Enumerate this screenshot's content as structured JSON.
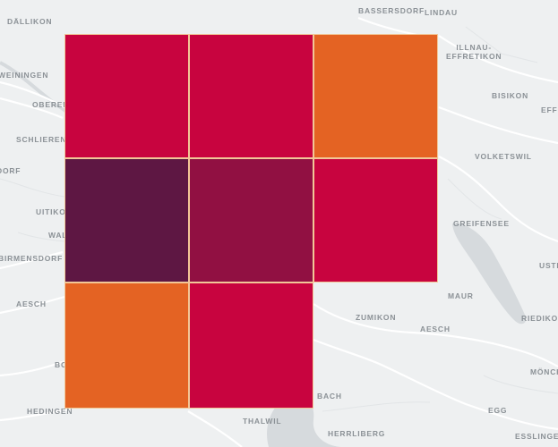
{
  "map": {
    "places": [
      {
        "id": "dallikon",
        "label": "DÄLLIKON"
      },
      {
        "id": "bassersdorf",
        "label": "BASSERSDORF"
      },
      {
        "id": "lindau",
        "label": "LINDAU"
      },
      {
        "id": "illnau",
        "label": "ILLNAU-\nEFFRETIKON"
      },
      {
        "id": "weiningen",
        "label": "WEININGEN"
      },
      {
        "id": "bisikon",
        "label": "BISIKON"
      },
      {
        "id": "oberengstringen",
        "label": "OBEREN"
      },
      {
        "id": "effretikon-edge",
        "label": "EFFF"
      },
      {
        "id": "schlieren",
        "label": "SCHLIEREN"
      },
      {
        "id": "volketswil",
        "label": "VOLKETSWIL"
      },
      {
        "id": "urdorf",
        "label": "DORF"
      },
      {
        "id": "uitikon",
        "label": "UITIKO"
      },
      {
        "id": "greifensee",
        "label": "GREIFENSEE"
      },
      {
        "id": "waldegg",
        "label": "WAL"
      },
      {
        "id": "birmensdorf",
        "label": "BIRMENSDORF"
      },
      {
        "id": "uster",
        "label": "USTE"
      },
      {
        "id": "aesch-west",
        "label": "AESCH"
      },
      {
        "id": "maur",
        "label": "MAUR"
      },
      {
        "id": "zumikon",
        "label": "ZUMIKON"
      },
      {
        "id": "riedikon",
        "label": "RIEDIKON"
      },
      {
        "id": "aesch-east",
        "label": "AESCH"
      },
      {
        "id": "bonstetten",
        "label": "BO"
      },
      {
        "id": "monchaltorf",
        "label": "MÖNCH"
      },
      {
        "id": "kusnacht",
        "label": "BACH"
      },
      {
        "id": "hedingen",
        "label": "HEDINGEN"
      },
      {
        "id": "thalwil",
        "label": "THALWIL"
      },
      {
        "id": "egg",
        "label": "EGG"
      },
      {
        "id": "herrliberg",
        "label": "HERRLIBERG"
      },
      {
        "id": "esslingen",
        "label": "ESSLINGEN"
      }
    ],
    "grid": {
      "rows": [
        [
          "#c8003c",
          "#c8003c",
          "#e4611f"
        ],
        [
          "#5c1340",
          "#900c3f",
          "#c8003c"
        ],
        [
          "#e4611f",
          "#c8003c",
          null
        ]
      ]
    },
    "colors": {
      "background": "#eef0f1",
      "water": "#d6dadd",
      "road": "#ffffff",
      "tile_border": "#f3c796"
    }
  }
}
